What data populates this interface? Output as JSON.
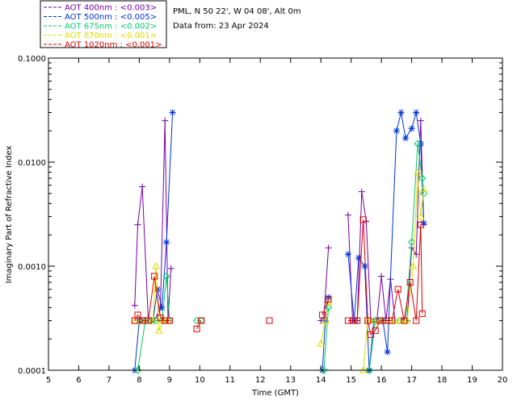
{
  "chart_data": {
    "type": "line",
    "title_line1": "PML, N 50 22', W 04 08', Alt 0m",
    "title_line2": "Data from: 23 Apr 2024",
    "xlabel": "Time (GMT)",
    "ylabel": "Imaginary Part of Refractive Index",
    "xlim": [
      5,
      20
    ],
    "ylim": [
      0.0001,
      0.1
    ],
    "yscale": "log",
    "x_ticks": [
      "5",
      "6",
      "7",
      "8",
      "9",
      "10",
      "11",
      "12",
      "13",
      "14",
      "15",
      "16",
      "17",
      "18",
      "19",
      "20"
    ],
    "y_ticks": [
      {
        "v": 0.0001,
        "label": "0.0001"
      },
      {
        "v": 0.001,
        "label": "0.0010"
      },
      {
        "v": 0.01,
        "label": "0.0100"
      },
      {
        "v": 0.1,
        "label": "0.1000"
      }
    ],
    "legend_position": "top-left-outside",
    "series": [
      {
        "name": "AOT  400nm : <0.003>",
        "color": "#7700aa",
        "marker": "plus",
        "segments": [
          [
            [
              7.85,
              0.00042
            ],
            [
              7.95,
              0.0025
            ],
            [
              8.1,
              0.0058
            ],
            [
              8.3,
              0.0003
            ],
            [
              8.5,
              0.0003
            ],
            [
              8.7,
              0.0004
            ],
            [
              8.85,
              0.025
            ],
            [
              8.95,
              0.0003
            ],
            [
              9.05,
              0.00095
            ]
          ],
          [
            [
              14.0,
              0.0003
            ],
            [
              14.1,
              0.00032
            ],
            [
              14.25,
              0.0015
            ]
          ],
          [
            [
              14.9,
              0.0031
            ],
            [
              15.05,
              0.0003
            ],
            [
              15.2,
              0.0003
            ],
            [
              15.35,
              0.0052
            ],
            [
              15.5,
              0.0027
            ],
            [
              15.65,
              0.0003
            ],
            [
              15.85,
              0.0003
            ],
            [
              16.0,
              0.0008
            ],
            [
              16.15,
              0.0003
            ],
            [
              16.3,
              0.00075
            ],
            [
              16.45,
              0.0003
            ],
            [
              16.7,
              0.0003
            ],
            [
              16.85,
              0.0003
            ],
            [
              17.0,
              0.0015
            ],
            [
              17.15,
              0.0013
            ],
            [
              17.3,
              0.025
            ],
            [
              17.4,
              0.0025
            ]
          ]
        ]
      },
      {
        "name": "AOT  500nm : <0.005>",
        "color": "#0033dd",
        "marker": "star",
        "segments": [
          [
            [
              7.85,
              0.0001
            ],
            [
              8.0,
              0.0003
            ],
            [
              8.1,
              0.0003
            ],
            [
              8.3,
              0.0003
            ],
            [
              8.45,
              0.0003
            ],
            [
              8.6,
              0.0006
            ],
            [
              8.75,
              0.0004
            ],
            [
              8.9,
              0.0017
            ],
            [
              9.1,
              0.03
            ]
          ],
          [
            [
              14.05,
              0.0001
            ],
            [
              14.15,
              0.0003
            ],
            [
              14.25,
              0.0005
            ]
          ],
          [
            [
              14.9,
              0.0013
            ],
            [
              15.1,
              0.0003
            ],
            [
              15.25,
              0.0012
            ],
            [
              15.45,
              0.001
            ],
            [
              15.6,
              0.0001
            ],
            [
              15.75,
              0.0003
            ],
            [
              15.9,
              0.0003
            ],
            [
              16.05,
              0.0003
            ],
            [
              16.2,
              0.00015
            ],
            [
              16.5,
              0.02
            ],
            [
              16.65,
              0.03
            ],
            [
              16.8,
              0.017
            ],
            [
              17.0,
              0.021
            ],
            [
              17.15,
              0.03
            ],
            [
              17.3,
              0.015
            ],
            [
              17.4,
              0.0026
            ]
          ]
        ]
      },
      {
        "name": "AOT  675nm : <0.002>",
        "color": "#00cc66",
        "marker": "diamond",
        "segments": [
          [
            [
              7.95,
              0.0001
            ],
            [
              8.2,
              0.0003
            ],
            [
              8.4,
              0.0003
            ],
            [
              8.55,
              0.0003
            ],
            [
              8.75,
              0.0003
            ],
            [
              8.9,
              0.0008
            ],
            [
              9.0,
              0.0003
            ]
          ],
          [
            [
              9.9,
              0.0003
            ],
            [
              10.05,
              0.0003
            ]
          ],
          [
            [
              14.1,
              0.0001
            ],
            [
              14.25,
              0.0004
            ]
          ],
          [
            [
              15.6,
              0.0001
            ],
            [
              15.8,
              0.0003
            ],
            [
              16.0,
              0.0003
            ],
            [
              16.3,
              0.0003
            ],
            [
              16.6,
              0.0003
            ],
            [
              16.8,
              0.0003
            ],
            [
              17.0,
              0.0017
            ],
            [
              17.2,
              0.015
            ],
            [
              17.35,
              0.007
            ],
            [
              17.4,
              0.005
            ]
          ]
        ]
      },
      {
        "name": "AOT  870nm : <0.001>",
        "color": "#dddd00",
        "marker": "triangle",
        "segments": [
          [
            [
              7.85,
              0.0003
            ],
            [
              8.05,
              0.0003
            ],
            [
              8.25,
              0.0003
            ],
            [
              8.45,
              0.0003
            ],
            [
              8.55,
              0.001
            ],
            [
              8.65,
              0.00024
            ],
            [
              8.8,
              0.0003
            ],
            [
              8.95,
              0.0003
            ]
          ],
          [
            [
              14.0,
              0.00018
            ],
            [
              14.15,
              0.0003
            ],
            [
              14.25,
              0.00045
            ]
          ],
          [
            [
              15.4,
              0.0001
            ],
            [
              15.55,
              0.0003
            ],
            [
              15.75,
              0.0003
            ],
            [
              16.0,
              0.0003
            ],
            [
              16.3,
              0.0003
            ],
            [
              16.6,
              0.0003
            ],
            [
              16.85,
              0.0003
            ],
            [
              17.05,
              0.001
            ],
            [
              17.2,
              0.008
            ],
            [
              17.3,
              0.003
            ],
            [
              17.4,
              0.0055
            ]
          ]
        ]
      },
      {
        "name": "AOT 1020nm : <0.001>",
        "color": "#dd0000",
        "marker": "square",
        "segments": [
          [
            [
              7.85,
              0.0003
            ],
            [
              7.95,
              0.00034
            ],
            [
              8.1,
              0.0003
            ],
            [
              8.3,
              0.0003
            ],
            [
              8.5,
              0.0008
            ],
            [
              8.7,
              0.00032
            ],
            [
              8.85,
              0.0003
            ],
            [
              9.0,
              0.0003
            ]
          ],
          [
            [
              9.9,
              0.00025
            ],
            [
              10.05,
              0.0003
            ]
          ],
          [
            [
              12.3,
              0.0003
            ]
          ],
          [
            [
              14.05,
              0.00034
            ],
            [
              14.25,
              0.00048
            ]
          ],
          [
            [
              14.9,
              0.0003
            ],
            [
              15.05,
              0.0003
            ],
            [
              15.2,
              0.0003
            ],
            [
              15.4,
              0.0028
            ],
            [
              15.55,
              0.0003
            ],
            [
              15.65,
              0.00022
            ],
            [
              15.8,
              0.00024
            ],
            [
              15.95,
              0.0003
            ],
            [
              16.15,
              0.0003
            ],
            [
              16.35,
              0.0003
            ],
            [
              16.55,
              0.0006
            ],
            [
              16.75,
              0.0003
            ],
            [
              16.95,
              0.0007
            ],
            [
              17.15,
              0.0003
            ],
            [
              17.3,
              0.0025
            ],
            [
              17.35,
              0.00035
            ]
          ]
        ]
      }
    ]
  }
}
